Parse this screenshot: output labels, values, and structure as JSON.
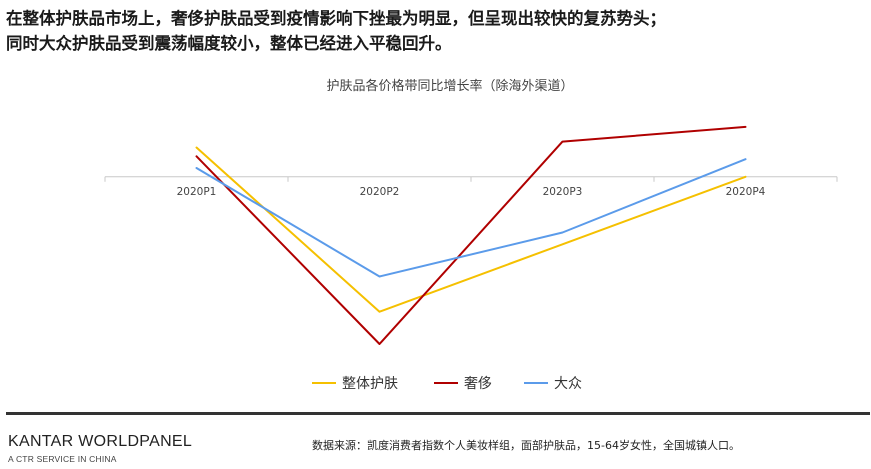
{
  "headline": {
    "line1": "在整体护肤品市场上，奢侈护肤品受到疫情影响下挫最为明显，但呈现出较快的复苏势头；",
    "line2": "同时大众护肤品受到震荡幅度较小，整体已经进入平稳回升。"
  },
  "chart_data": {
    "type": "line",
    "title": "护肤品各价格带同比增长率（除海外渠道）",
    "categories": [
      "2020P1",
      "2020P2",
      "2020P3",
      "2020P4"
    ],
    "ylim": [
      -57,
      18
    ],
    "series": [
      {
        "name": "整体护肤",
        "color": "#F5C000",
        "values": [
          10,
          -46,
          -23,
          0
        ]
      },
      {
        "name": "奢侈",
        "color": "#B00000",
        "values": [
          7,
          -57,
          12,
          17
        ]
      },
      {
        "name": "大众",
        "color": "#5B9BEA",
        "values": [
          3,
          -34,
          -19,
          6
        ]
      }
    ],
    "grid": false,
    "legend_position": "bottom"
  },
  "footer": {
    "brand": "KANTAR WORLDPANEL",
    "brand_sub": "A CTR SERVICE IN CHINA",
    "source": "数据来源：凯度消费者指数个人美妆样组，面部护肤品，15-64岁女性，全国城镇人口。"
  }
}
